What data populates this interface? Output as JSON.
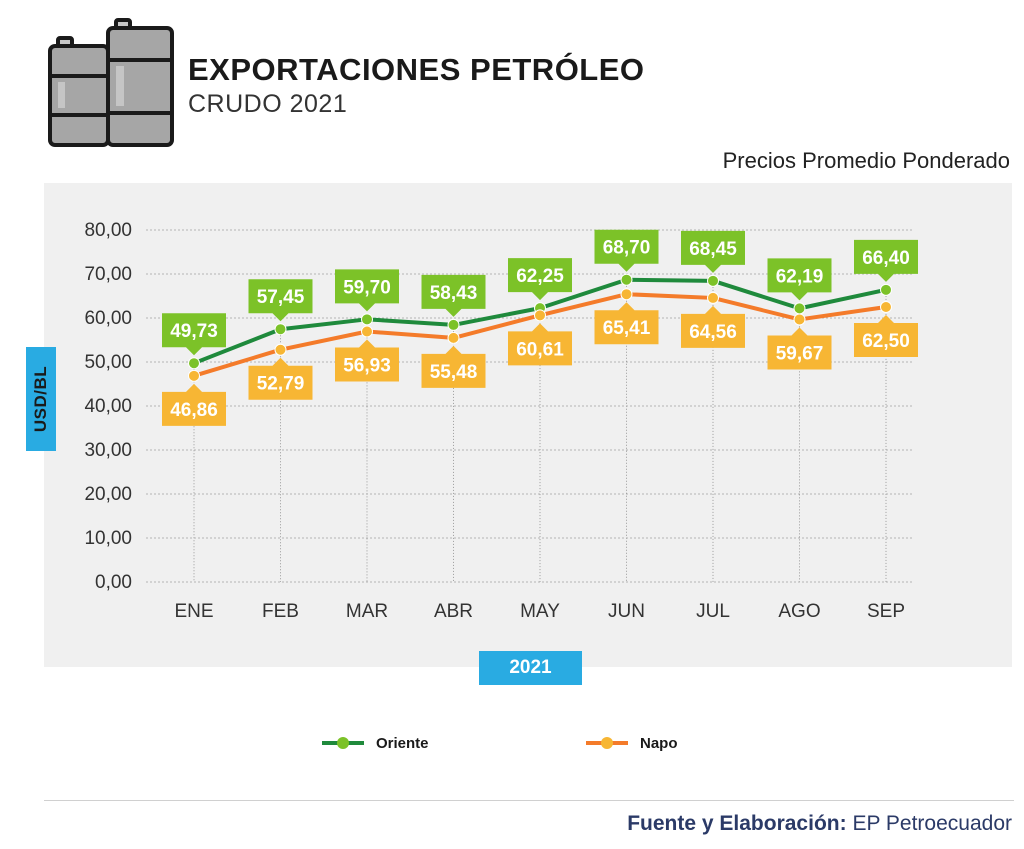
{
  "header": {
    "title": "EXPORTACIONES PETRÓLEO",
    "subtitle": "CRUDO 2021",
    "icon": "oil-barrels-icon"
  },
  "chart_subtitle": "Precios Promedio Ponderado",
  "year_label": "2021",
  "footer": {
    "label": "Fuente y Elaboración:",
    "source": "EP Petroecuador"
  },
  "colors": {
    "oriente": "#1f8a3c",
    "oriente_label": "#7cc228",
    "napo": "#f47b2a",
    "napo_label": "#f7b634",
    "accent": "#29abe2",
    "panel": "#f0f0f0"
  },
  "chart_data": {
    "type": "line",
    "title": "EXPORTACIONES PETRÓLEO",
    "subtitle": "CRUDO 2021",
    "ylabel": "USD/BL",
    "xlabel": "2021",
    "categories": [
      "ENE",
      "FEB",
      "MAR",
      "ABR",
      "MAY",
      "JUN",
      "JUL",
      "AGO",
      "SEP"
    ],
    "ylim": [
      0,
      80
    ],
    "yticks": [
      "0,00",
      "10,00",
      "20,00",
      "30,00",
      "40,00",
      "50,00",
      "60,00",
      "70,00",
      "80,00"
    ],
    "grid": true,
    "legend_position": "bottom",
    "series": [
      {
        "name": "Oriente",
        "values": [
          49.73,
          57.45,
          59.7,
          58.43,
          62.25,
          68.7,
          68.45,
          62.19,
          66.4
        ],
        "labels": [
          "49,73",
          "57,45",
          "59,70",
          "58,43",
          "62,25",
          "68,70",
          "68,45",
          "62,19",
          "66,40"
        ]
      },
      {
        "name": "Napo",
        "values": [
          46.86,
          52.79,
          56.93,
          55.48,
          60.61,
          65.41,
          64.56,
          59.67,
          62.5
        ],
        "labels": [
          "46,86",
          "52,79",
          "56,93",
          "55,48",
          "60,61",
          "65,41",
          "64,56",
          "59,67",
          "62,50"
        ]
      }
    ]
  }
}
